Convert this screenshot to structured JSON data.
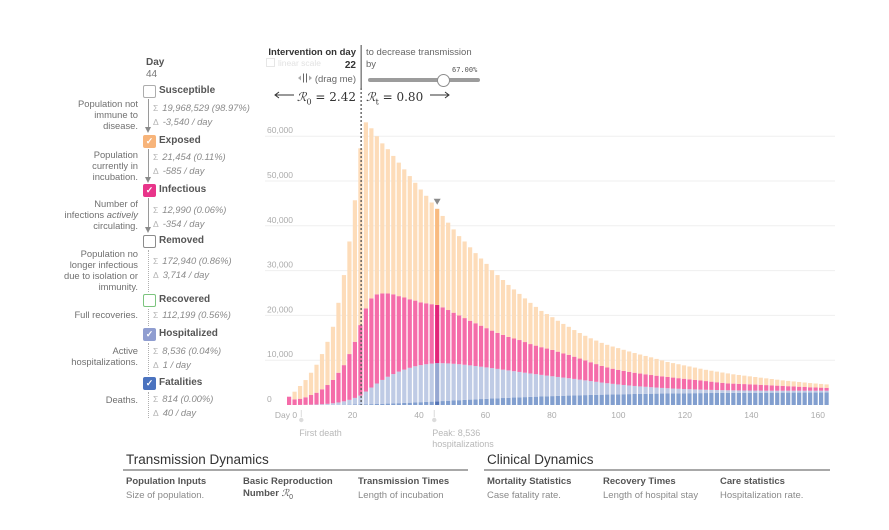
{
  "left_panel": {
    "day_label": "Day",
    "day_value": "44",
    "symbols": {
      "sum": "Σ",
      "delta": "Δ",
      "check": "✓"
    },
    "compartments": {
      "susceptible": {
        "label": "Susceptible",
        "checked": false,
        "color": "#ffffff",
        "border_color": "#adadad",
        "desc": [
          "Population not",
          "immune to",
          "disease."
        ],
        "sum": "19,968,529 (98.97%)",
        "delta": "-3,540 / day"
      },
      "exposed": {
        "label": "Exposed",
        "checked": true,
        "color": "#f7b47a",
        "border_color": "#f7b47a",
        "desc": [
          "Population",
          "currently in",
          "incubation."
        ],
        "sum": "21,454 (0.11%)",
        "delta": "-585 / day"
      },
      "infectious": {
        "label": "Infectious",
        "checked": true,
        "color": "#e8358a",
        "border_color": "#e8358a",
        "desc": [
          "Number of",
          "infections",
          "actively",
          "circulating."
        ],
        "sum": "12,990 (0.06%)",
        "delta": "-354 / day"
      },
      "removed": {
        "label": "Removed",
        "checked": false,
        "color": "#ffffff",
        "border_color": "#8c8c8c",
        "desc": [
          "Population no",
          "longer infectious",
          "due to isolation or",
          "immunity."
        ],
        "sum": "172,940 (0.86%)",
        "delta": "3,714 / day"
      },
      "recovered": {
        "label": "Recovered",
        "checked": false,
        "color": "#ffffff",
        "border_color": "#7cc47e",
        "desc": [
          "Full recoveries."
        ],
        "sum": "112,199 (0.56%)"
      },
      "hospitalized": {
        "label": "Hospitalized",
        "checked": true,
        "color": "#8f9dd0",
        "border_color": "#8f9dd0",
        "desc": [
          "Active",
          "hospitalizations."
        ],
        "sum": "8,536 (0.04%)",
        "delta": "1 / day"
      },
      "fatalities": {
        "label": "Fatalities",
        "checked": true,
        "color": "#4b73bf",
        "border_color": "#4b73bf",
        "desc": [
          "Deaths."
        ],
        "sum": "814 (0.00%)",
        "delta": "40 / day"
      }
    }
  },
  "intervention": {
    "title": "Intervention on day",
    "linear_scale_label": "linear scale",
    "day": "22",
    "drag_hint": "(drag me)",
    "decrease_text_1": "to decrease transmission",
    "decrease_text_2": "by",
    "percent_label": "67.00%",
    "slider_value": 0.67,
    "r0_symbol": "ℛ",
    "r0_sub": "0",
    "r0_value": " = 2.42",
    "rt_symbol": "ℛ",
    "rt_sub": "t",
    "rt_value": " = 0.80"
  },
  "sections": [
    {
      "title": "Transmission Dynamics",
      "columns": [
        {
          "heading": "Population Inputs",
          "text": "Size of population."
        },
        {
          "heading": "Basic Reproduction",
          "heading2": "Number ",
          "heading_math": "ℛ",
          "heading_sub": "0"
        },
        {
          "heading": "Transmission Times",
          "text": "Length of incubation"
        }
      ]
    },
    {
      "title": "Clinical Dynamics",
      "columns": [
        {
          "heading": "Mortality Statistics",
          "text": "Case fatality rate."
        },
        {
          "heading": "Recovery Times",
          "text": "Length of hospital stay"
        },
        {
          "heading": "Care statistics",
          "text": "Hospitalization rate."
        }
      ]
    }
  ],
  "chart_data": {
    "type": "bar",
    "stacked": true,
    "title": "",
    "xlabel": "",
    "ylabel": "",
    "x_start_day": 0,
    "x_step_days": 1.65,
    "xlim": [
      0,
      165
    ],
    "ylim": [
      0,
      65000
    ],
    "grid": true,
    "yticks": [
      0,
      10000,
      20000,
      30000,
      40000,
      50000,
      60000
    ],
    "ytick_labels": [
      "0",
      "10,000",
      "20,000",
      "30,000",
      "40,000",
      "50,000",
      "60,000"
    ],
    "xticks": [
      0,
      20,
      40,
      60,
      80,
      100,
      120,
      140,
      160
    ],
    "xtick_labels": [
      "Day 0",
      "20",
      "40",
      "60",
      "80",
      "100",
      "120",
      "140",
      "160"
    ],
    "selected_index": 27,
    "selected_day": 44,
    "intervention_day": 22,
    "annotations": [
      {
        "day": 4,
        "lines": [
          "First death"
        ]
      },
      {
        "day": 44,
        "lines": [
          "Peak: 8,536",
          "hospitalizations"
        ]
      }
    ],
    "series": [
      {
        "name": "Fatalities",
        "color": "#829fcf",
        "highlight_color": "#5575b7",
        "values": [
          0,
          0,
          1,
          2,
          4,
          8,
          14,
          22,
          32,
          45,
          62,
          82,
          105,
          130,
          160,
          195,
          230,
          270,
          315,
          360,
          410,
          460,
          515,
          570,
          630,
          690,
          750,
          814,
          880,
          946,
          1012,
          1077,
          1141,
          1204,
          1266,
          1327,
          1387,
          1445,
          1502,
          1557,
          1611,
          1663,
          1714,
          1763,
          1811,
          1857,
          1902,
          1945,
          1987,
          2027,
          2066,
          2104,
          2140,
          2175,
          2209,
          2241,
          2272,
          2302,
          2331,
          2358,
          2384,
          2409,
          2433,
          2456,
          2478,
          2499,
          2519,
          2538,
          2556,
          2573,
          2589,
          2604,
          2618,
          2631,
          2643,
          2655,
          2666,
          2676,
          2686,
          2695,
          2703,
          2711,
          2718,
          2725,
          2731,
          2737,
          2742,
          2747,
          2752,
          2756,
          2760,
          2764,
          2767,
          2770,
          2773,
          2776,
          2778,
          2780,
          2782
        ]
      },
      {
        "name": "Hospitalized",
        "color": "#bfcbe5",
        "highlight_color": "#97a8d2",
        "values": [
          0,
          0,
          19,
          38,
          66,
          102,
          156,
          238,
          358,
          525,
          758,
          1068,
          1475,
          1970,
          2840,
          3705,
          4570,
          5330,
          5985,
          6540,
          7040,
          7440,
          7785,
          8080,
          8270,
          8410,
          8500,
          8536,
          8450,
          8334,
          8188,
          8023,
          7839,
          7646,
          7434,
          7223,
          7003,
          6785,
          6558,
          6333,
          6109,
          5887,
          5666,
          5447,
          5229,
          5023,
          4818,
          4615,
          4423,
          4233,
          4054,
          3876,
          3680,
          3485,
          3291,
          3099,
          2908,
          2718,
          2529,
          2362,
          2206,
          2061,
          1927,
          1794,
          1672,
          1561,
          1451,
          1352,
          1254,
          1167,
          1091,
          1016,
          952,
          889,
          837,
          785,
          734,
          694,
          654,
          615,
          587,
          559,
          532,
          515,
          499,
          483,
          468,
          453,
          448,
          444,
          440,
          436,
          433,
          430,
          427,
          424,
          422,
          420,
          418
        ]
      },
      {
        "name": "Infectious",
        "color": "#f56ca9",
        "highlight_color": "#e3247a",
        "values": [
          1850,
          1270,
          1380,
          1680,
          2160,
          2630,
          3330,
          4200,
          5190,
          6630,
          8080,
          10220,
          12520,
          15740,
          18560,
          19900,
          19900,
          19300,
          18600,
          17800,
          16850,
          16100,
          15300,
          14650,
          14000,
          13600,
          13250,
          12990,
          12470,
          11920,
          11400,
          10900,
          10420,
          9950,
          9550,
          9150,
          8760,
          8370,
          8040,
          7760,
          7480,
          7300,
          7120,
          6840,
          6560,
          6370,
          6180,
          6040,
          5890,
          5640,
          5380,
          5220,
          4960,
          4710,
          4450,
          4200,
          3950,
          3700,
          3520,
          3380,
          3260,
          3150,
          3040,
          2950,
          2870,
          2790,
          2720,
          2650,
          2590,
          2510,
          2440,
          2370,
          2290,
          2210,
          2120,
          2030,
          1940,
          1840,
          1740,
          1640,
          1530,
          1500,
          1470,
          1430,
          1390,
          1340,
          1290,
          1240,
          1180,
          1120,
          1060,
          1000,
          940,
          880,
          820,
          760,
          710,
          670,
          630
        ]
      },
      {
        "name": "Exposed",
        "color": "#fddcb9",
        "highlight_color": "#f9bb80",
        "values": [
          0,
          1700,
          2840,
          3850,
          4970,
          6250,
          7870,
          9640,
          11880,
          15610,
          20100,
          25130,
          31600,
          39460,
          41540,
          37970,
          35300,
          33500,
          32200,
          30900,
          29800,
          28600,
          27500,
          26300,
          25200,
          24000,
          22700,
          21454,
          20400,
          19500,
          18600,
          17700,
          17100,
          16400,
          15650,
          15000,
          14350,
          13500,
          12900,
          12250,
          11600,
          10950,
          10300,
          9750,
          9200,
          8650,
          8100,
          7700,
          7300,
          6900,
          6600,
          6250,
          5950,
          5700,
          5500,
          5350,
          5250,
          5150,
          5050,
          4950,
          4850,
          4700,
          4550,
          4400,
          4250,
          4100,
          3950,
          3750,
          3550,
          3350,
          3230,
          3110,
          2990,
          2870,
          2750,
          2630,
          2510,
          2440,
          2370,
          2300,
          2230,
          2080,
          1980,
          1880,
          1780,
          1690,
          1600,
          1510,
          1420,
          1330,
          1240,
          1180,
          1120,
          1060,
          1000,
          940,
          890,
          830,
          770
        ]
      }
    ]
  }
}
